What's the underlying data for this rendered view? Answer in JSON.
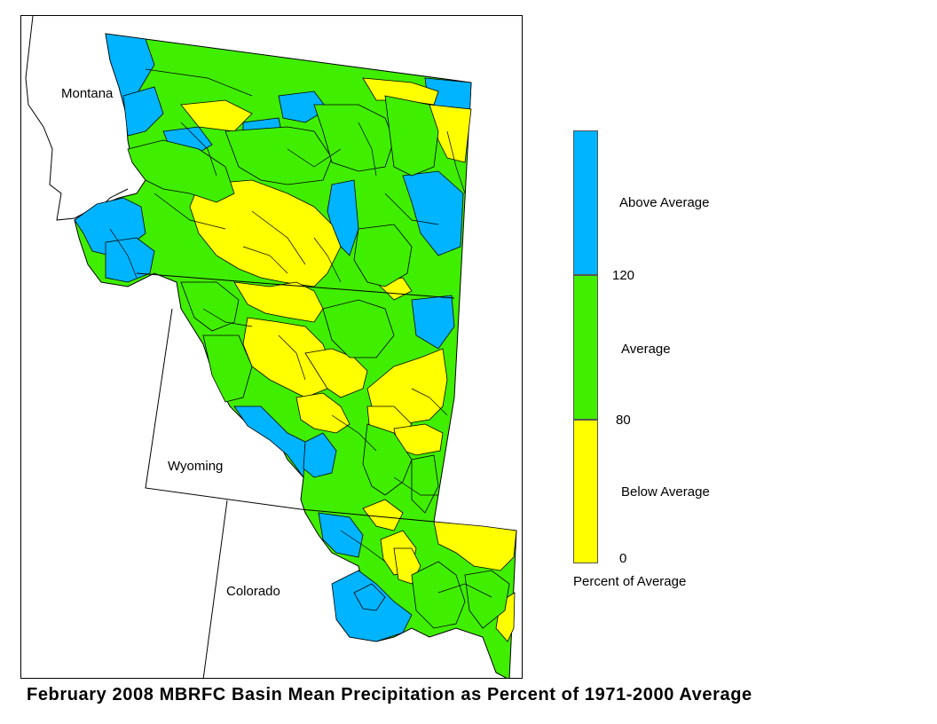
{
  "title": "February 2008 MBRFC Basin Mean Precipitation as Percent of 1971-2000 Average",
  "map": {
    "states": [
      {
        "name": "Montana"
      },
      {
        "name": "Wyoming"
      },
      {
        "name": "Colorado"
      }
    ],
    "categories": [
      {
        "key": "above",
        "label": "Above Average",
        "color": "#00b4ff"
      },
      {
        "key": "average",
        "label": "Average",
        "color": "#40ee00"
      },
      {
        "key": "below",
        "label": "Below Average",
        "color": "#ffff00"
      }
    ]
  },
  "legend": {
    "title": "Percent of Average",
    "labels": {
      "above": "Above Average",
      "average": "Average",
      "below": "Below Average"
    },
    "ticks": [
      "120",
      "80",
      "0"
    ],
    "colors": {
      "above": "#00b4ff",
      "average": "#40ee00",
      "below": "#ffff00"
    }
  }
}
